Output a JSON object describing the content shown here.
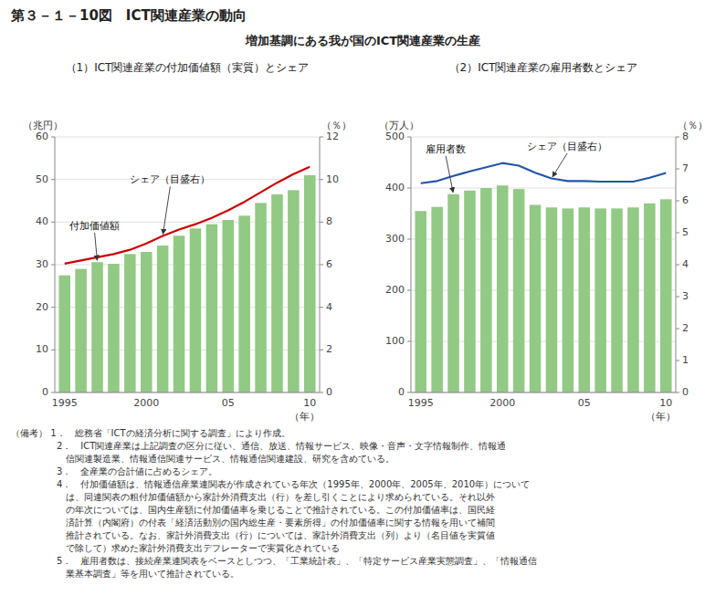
{
  "title": "第３－１－10図　ICT関連産業の動向",
  "subtitle": "増加基調にある我が国のICT関連産業の生産",
  "notes": [
    "（備考） 1．　総務省「ICTの経済分析に関する調査」により作成。",
    "　　　　　2．　ICT関連産業は上記調査の区分に従い、通信、放送、情報サービス、映像・音声・文字情報制作、情報通",
    "　　　　　　信関連製造業、情報通信関連サービス、情報通信関連建設、研究を含めている。",
    "　　　　　3．　全産業の合計値に占めるシェア。",
    "　　　　　4．　付加価値額は、情報通信産業連関表が作成されている年次（1995年、2000年、2005年、2010年）について",
    "　　　　　　は、同連関表の粗付加価値額から家計外消費支出（行）を差し引くことにより求められている。それ以外",
    "　　　　　　の年次については、国内生産額に付加価値率を乗じることで推計されている。この付加価値率は、国民経",
    "　　　　　　済計算（内閣府）の付表「経済活動別の国内総生産・要素所得」の付加価値率に関する情報を用いて補間",
    "　　　　　　推計されている。なお、家計外消費支出（行）については、家計外消費支出（列）より（名目値を実質値",
    "　　　　　　で除して）求めた家計外消費支出デフレーターで実質化されている",
    "　　　　　5．　雇用者数は、接続産業連関表をベースとしつつ、「工業統計表」、「特定サービス産業実態調査」、「情報通信",
    "　　　　　　業基本調査」等を用いて推計されている。"
  ],
  "chart_data": [
    {
      "type": "bar",
      "title": "（1）ICT関連産業の付加価値額（実質）とシェア",
      "categories": [
        "1995",
        null,
        null,
        null,
        null,
        "2000",
        null,
        null,
        null,
        null,
        "05",
        null,
        null,
        null,
        null,
        "10"
      ],
      "series": [
        {
          "name": "付加価値額",
          "type": "bar",
          "color": "#92c984",
          "values": [
            27.5,
            29.0,
            30.6,
            30.2,
            32.5,
            33.0,
            34.5,
            36.8,
            38.5,
            39.5,
            40.5,
            41.5,
            44.5,
            46.5,
            47.5,
            51.0
          ]
        },
        {
          "name": "シェア（目盛右）",
          "type": "line",
          "color": "#cc0000",
          "axis": "y2",
          "values": [
            6.05,
            6.2,
            6.35,
            6.5,
            6.7,
            7.0,
            7.35,
            7.65,
            7.9,
            8.2,
            8.55,
            8.95,
            9.4,
            9.85,
            10.25,
            10.6
          ]
        }
      ],
      "xlabel": "（年）",
      "ylabel": "（兆円）",
      "y2label": "（％）",
      "ylim": [
        0,
        60
      ],
      "yticks": [
        0,
        10,
        20,
        30,
        40,
        50,
        60
      ],
      "y2lim": [
        0,
        12
      ],
      "y2ticks": [
        0,
        2,
        4,
        6,
        8,
        10,
        12
      ],
      "grid": true
    },
    {
      "type": "bar",
      "title": "（2）ICT関連産業の雇用者数とシェア",
      "categories": [
        "1995",
        null,
        null,
        null,
        null,
        "2000",
        null,
        null,
        null,
        null,
        "05",
        null,
        null,
        null,
        null,
        "10"
      ],
      "series": [
        {
          "name": "雇用者数",
          "type": "bar",
          "color": "#92c984",
          "values": [
            355,
            363,
            388,
            395,
            400,
            405,
            398,
            367,
            362,
            360,
            362,
            360,
            360,
            362,
            370,
            378
          ]
        },
        {
          "name": "シェア（目盛右）",
          "type": "line",
          "color": "#2255aa",
          "axis": "y2",
          "values": [
            6.55,
            6.62,
            6.78,
            6.92,
            7.05,
            7.18,
            7.1,
            6.88,
            6.7,
            6.62,
            6.62,
            6.6,
            6.6,
            6.6,
            6.72,
            6.87
          ]
        }
      ],
      "xlabel": "（年）",
      "ylabel": "（万人）",
      "y2label": "（％）",
      "ylim": [
        0,
        500
      ],
      "yticks": [
        0,
        100,
        200,
        300,
        400,
        500
      ],
      "y2lim": [
        0,
        8
      ],
      "y2ticks": [
        0,
        1,
        2,
        3,
        4,
        5,
        6,
        7,
        8
      ],
      "grid": true
    }
  ]
}
